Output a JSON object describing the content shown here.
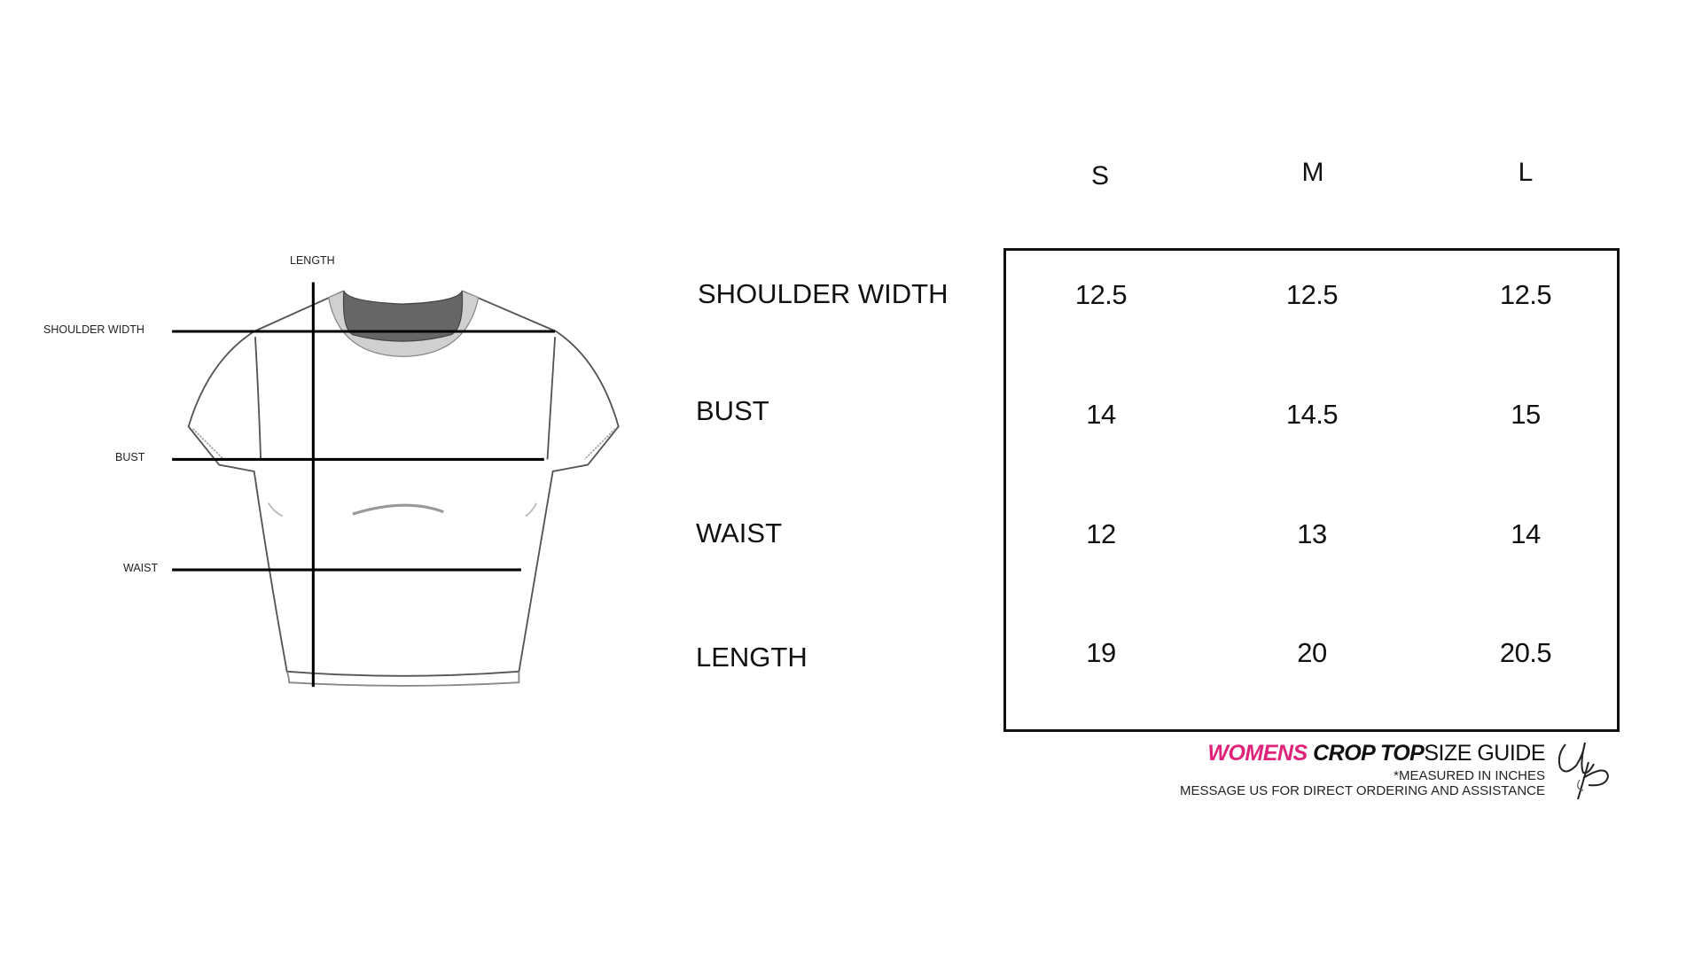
{
  "diagram": {
    "labels": {
      "length": "LENGTH",
      "shoulder_width": "SHOULDER WIDTH",
      "bust": "BUST",
      "waist": "WAIST"
    }
  },
  "size_chart": {
    "sizes": [
      "S",
      "M",
      "L"
    ],
    "rows": [
      {
        "label": "SHOULDER WIDTH",
        "values": [
          "12.5",
          "12.5",
          "12.5"
        ]
      },
      {
        "label": "BUST",
        "values": [
          "14",
          "14.5",
          "15"
        ]
      },
      {
        "label": "WAIST",
        "values": [
          "12",
          "13",
          "14"
        ]
      },
      {
        "label": "LENGTH",
        "values": [
          "19",
          "20",
          "20.5"
        ]
      }
    ]
  },
  "footer": {
    "title_part1": "WOMENS",
    "title_part2": "CROP TOP",
    "title_part3": "SIZE GUIDE",
    "note": "*MEASURED IN INCHES",
    "message": "MESSAGE US FOR DIRECT ORDERING AND ASSISTANCE",
    "logo_text": "UP",
    "accent_color": "#e0237a"
  }
}
